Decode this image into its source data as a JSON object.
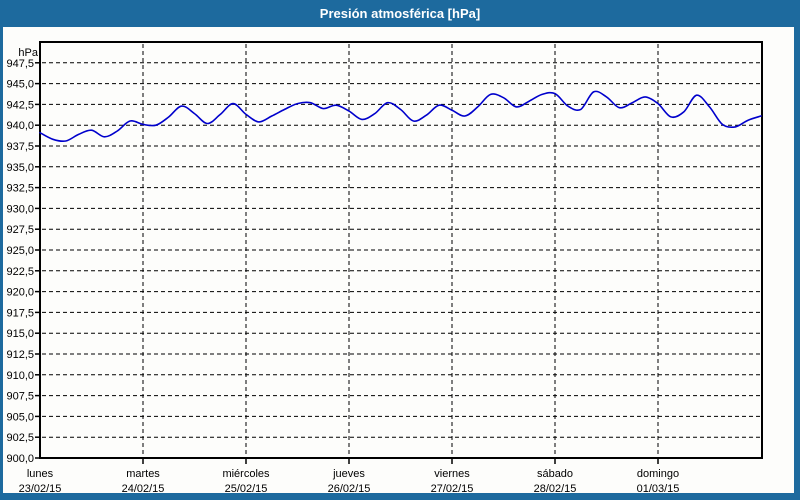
{
  "window": {
    "title": "Presión atmosférica [hPa]"
  },
  "chart": {
    "y_axis": {
      "unit": "hPa",
      "labels": [
        "947,5",
        "945,0",
        "942,5",
        "940,0",
        "937,5",
        "935,0",
        "932,5",
        "930,0",
        "927,5",
        "925,0",
        "922,5",
        "920,0",
        "917,5",
        "915,0",
        "912,5",
        "910,0",
        "907,5",
        "905,0",
        "902,5",
        "900,0"
      ]
    },
    "x_axis": {
      "days": [
        {
          "name": "lunes",
          "date": "23/02/15"
        },
        {
          "name": "martes",
          "date": "24/02/15"
        },
        {
          "name": "miércoles",
          "date": "25/02/15"
        },
        {
          "name": "jueves",
          "date": "26/02/15"
        },
        {
          "name": "viernes",
          "date": "27/02/15"
        },
        {
          "name": "sábado",
          "date": "28/02/15"
        },
        {
          "name": "domingo",
          "date": "01/03/15"
        }
      ]
    },
    "colors": {
      "frame": "#1d6a9e",
      "titlebar": "#1d6a9e",
      "title_text": "#ffffff",
      "line": "#0000cc",
      "grid": "#000000",
      "background": "#fdfdfb",
      "text": "#000000"
    }
  },
  "chart_data": {
    "type": "line",
    "title": "Presión atmosférica [hPa]",
    "ylabel": "hPa",
    "xlabel": "",
    "ylim": [
      900,
      950
    ],
    "ytick_step": 2.5,
    "grid": "dashed",
    "legend": "none",
    "x_categories": [
      "lunes 23/02/15",
      "martes 24/02/15",
      "miércoles 25/02/15",
      "jueves 26/02/15",
      "viernes 27/02/15",
      "sábado 28/02/15",
      "domingo 01/03/15"
    ],
    "x_hours_from_start": [
      0,
      3,
      6,
      9,
      12,
      15,
      18,
      21,
      24,
      27,
      30,
      33,
      36,
      39,
      42,
      45,
      48,
      51,
      54,
      57,
      60,
      63,
      66,
      69,
      72,
      75,
      78,
      81,
      84,
      87,
      90,
      93,
      96,
      99,
      102,
      105,
      108,
      111,
      114,
      117,
      120,
      123,
      126,
      129,
      132,
      135,
      138,
      141,
      144,
      147,
      150,
      153,
      156,
      159,
      162,
      165,
      168
    ],
    "x_total_hours": 168,
    "values": [
      939.1,
      938.3,
      938.1,
      938.9,
      939.4,
      938.6,
      939.3,
      940.5,
      940.1,
      940.0,
      941.0,
      942.3,
      941.4,
      940.2,
      941.3,
      942.6,
      941.3,
      940.4,
      941.1,
      941.9,
      942.6,
      942.7,
      942.0,
      942.4,
      941.7,
      940.7,
      941.4,
      942.7,
      941.9,
      940.5,
      941.2,
      942.4,
      941.8,
      941.1,
      942.2,
      943.7,
      943.3,
      942.2,
      942.9,
      943.7,
      943.8,
      942.3,
      941.9,
      944.0,
      943.4,
      942.1,
      942.7,
      943.4,
      942.6,
      941.0,
      941.6,
      943.6,
      942.2,
      940.1,
      939.8,
      940.6,
      941.1
    ]
  }
}
